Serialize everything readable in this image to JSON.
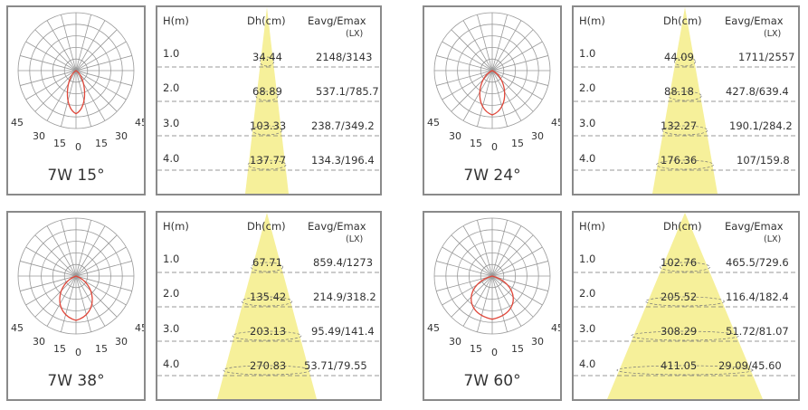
{
  "headers": {
    "h": "H(m)",
    "dh": "Dh(cm)",
    "e": "Eavg/Emax",
    "unit": "(LX)"
  },
  "angle_labels": [
    "45",
    "30",
    "15",
    "0",
    "15",
    "30",
    "45"
  ],
  "colors": {
    "beam": "#f6f09a",
    "curve": "#e0473a",
    "grid": "#999999",
    "border": "#8a8a8a",
    "dash": "#777777"
  },
  "panels": [
    {
      "caption": "7W 15°",
      "rows": [
        {
          "h": "1.0",
          "dh": "34.44",
          "e": "2148/3143"
        },
        {
          "h": "2.0",
          "dh": "68.89",
          "e": "537.1/785.7"
        },
        {
          "h": "3.0",
          "dh": "103.33",
          "e": "238.7/349.2"
        },
        {
          "h": "4.0",
          "dh": "137.77",
          "e": "134.3/196.4"
        }
      ]
    },
    {
      "caption": "7W 24°",
      "rows": [
        {
          "h": "1.0",
          "dh": "44.09",
          "e": "1711/2557"
        },
        {
          "h": "2.0",
          "dh": "88.18",
          "e": "427.8/639.4"
        },
        {
          "h": "3.0",
          "dh": "132.27",
          "e": "190.1/284.2"
        },
        {
          "h": "4.0",
          "dh": "176.36",
          "e": "107/159.8"
        }
      ]
    },
    {
      "caption": "7W 38°",
      "rows": [
        {
          "h": "1.0",
          "dh": "67.71",
          "e": "859.4/1273"
        },
        {
          "h": "2.0",
          "dh": "135.42",
          "e": "214.9/318.2"
        },
        {
          "h": "3.0",
          "dh": "203.13",
          "e": "95.49/141.4"
        },
        {
          "h": "4.0",
          "dh": "270.83",
          "e": "53.71/79.55"
        }
      ]
    },
    {
      "caption": "7W 60°",
      "rows": [
        {
          "h": "1.0",
          "dh": "102.76",
          "e": "465.5/729.6"
        },
        {
          "h": "2.0",
          "dh": "205.52",
          "e": "116.4/182.4"
        },
        {
          "h": "3.0",
          "dh": "308.29",
          "e": "51.72/81.07"
        },
        {
          "h": "4.0",
          "dh": "411.05",
          "e": "29.09/45.60"
        }
      ]
    }
  ]
}
